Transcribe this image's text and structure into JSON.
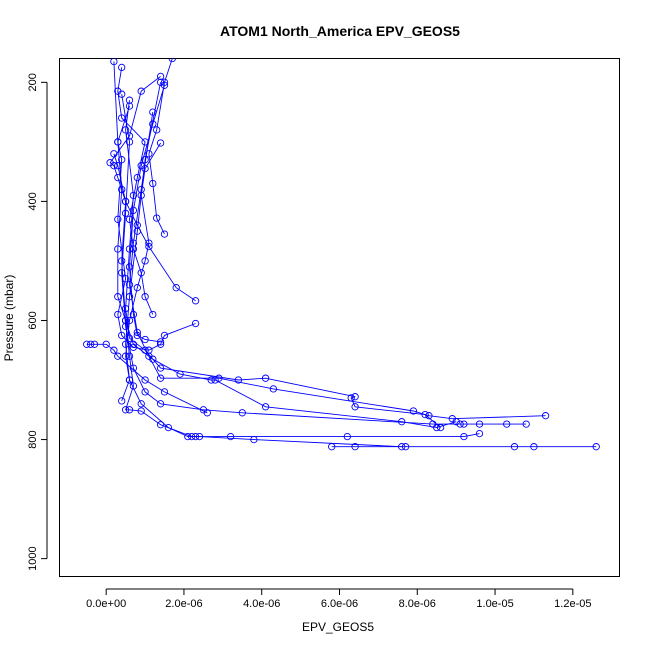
{
  "chart_data": {
    "type": "line",
    "title": "ATOM1 North_America EPV_GEOS5",
    "xlabel": "EPV_GEOS5",
    "ylabel": "Pressure (mbar)",
    "xlim": [
      -1.2e-06,
      1.32e-05
    ],
    "ylim": [
      1030,
      160
    ],
    "y_inverted": true,
    "x_ticks": [
      0,
      2e-06,
      4e-06,
      6e-06,
      8e-06,
      1e-05,
      1.2e-05
    ],
    "x_tick_labels": [
      "0.0e+00",
      "2.0e-06",
      "4.0e-06",
      "6.0e-06",
      "8.0e-06",
      "1.0e-05",
      "1.2e-05"
    ],
    "y_ticks": [
      200,
      400,
      600,
      800,
      1000
    ],
    "y_tick_labels": [
      "200",
      "400",
      "600",
      "800",
      "1000"
    ],
    "marker": "open-circle",
    "color": "#0000ff",
    "series": [
      {
        "name": "profile-1",
        "points": [
          [
            1.26e-05,
            812
          ],
          [
            1.1e-05,
            812
          ],
          [
            1.05e-05,
            812
          ],
          [
            7.7e-06,
            812
          ],
          [
            6.4e-06,
            812
          ],
          [
            5.8e-06,
            812
          ]
        ]
      },
      {
        "name": "profile-2",
        "points": [
          [
            7.6e-06,
            812
          ],
          [
            3.8e-06,
            800
          ],
          [
            2.4e-06,
            795
          ],
          [
            2.1e-06,
            795
          ],
          [
            1.6e-06,
            780
          ],
          [
            9e-07,
            740
          ],
          [
            6e-07,
            700
          ],
          [
            5e-07,
            640
          ],
          [
            6e-07,
            560
          ],
          [
            8e-07,
            450
          ],
          [
            1e-06,
            330
          ],
          [
            1.4e-06,
            200
          ]
        ]
      },
      {
        "name": "profile-3",
        "points": [
          [
            1.13e-05,
            760
          ],
          [
            8.9e-06,
            765
          ],
          [
            8.3e-06,
            760
          ],
          [
            7.9e-06,
            752
          ],
          [
            4.3e-06,
            715
          ],
          [
            2.9e-06,
            697
          ],
          [
            1.4e-06,
            697
          ],
          [
            1.1e-06,
            660
          ],
          [
            8e-07,
            620
          ],
          [
            6e-07,
            540
          ],
          [
            7e-07,
            470
          ],
          [
            9e-07,
            380
          ],
          [
            1.2e-06,
            250
          ]
        ]
      },
      {
        "name": "profile-4",
        "points": [
          [
            1.08e-05,
            774
          ],
          [
            1.03e-05,
            774
          ],
          [
            9.6e-06,
            774
          ],
          [
            9.2e-06,
            774
          ],
          [
            9.1e-06,
            774
          ],
          [
            8.4e-06,
            774
          ],
          [
            3.5e-06,
            755
          ],
          [
            2.5e-06,
            750
          ],
          [
            1.4e-06,
            740
          ],
          [
            1e-06,
            720
          ],
          [
            7e-07,
            680
          ],
          [
            5e-07,
            610
          ],
          [
            4e-07,
            520
          ],
          [
            5e-07,
            420
          ],
          [
            6e-07,
            300
          ],
          [
            4e-07,
            220
          ]
        ]
      },
      {
        "name": "profile-5",
        "points": [
          [
            9.6e-06,
            790
          ],
          [
            9.2e-06,
            795
          ],
          [
            6.2e-06,
            795
          ],
          [
            3.2e-06,
            795
          ],
          [
            2.3e-06,
            795
          ],
          [
            2.2e-06,
            795
          ],
          [
            1.4e-06,
            775
          ],
          [
            9e-07,
            752
          ],
          [
            6e-07,
            750
          ],
          [
            5e-07,
            750
          ],
          [
            7e-07,
            710
          ],
          [
            6e-07,
            660
          ],
          [
            5e-07,
            600
          ],
          [
            4e-07,
            500
          ],
          [
            5e-07,
            400
          ],
          [
            3e-07,
            340
          ],
          [
            2e-07,
            320
          ]
        ]
      },
      {
        "name": "profile-6",
        "points": [
          [
            8.6e-06,
            780
          ],
          [
            8.2e-06,
            758
          ],
          [
            6.4e-06,
            745
          ],
          [
            6.3e-06,
            730
          ],
          [
            6.4e-06,
            728
          ],
          [
            4.1e-06,
            697
          ],
          [
            3.4e-06,
            700
          ],
          [
            1.4e-06,
            680
          ],
          [
            1e-06,
            650
          ],
          [
            6e-07,
            630
          ],
          [
            5e-07,
            580
          ],
          [
            6e-07,
            480
          ],
          [
            7e-07,
            390
          ],
          [
            5e-07,
            280
          ],
          [
            6e-07,
            230
          ]
        ]
      },
      {
        "name": "profile-7",
        "points": [
          [
            9e-06,
            770
          ],
          [
            8.5e-06,
            780
          ],
          [
            7.6e-06,
            770
          ],
          [
            4.1e-06,
            745
          ],
          [
            2.8e-06,
            700
          ],
          [
            2.7e-06,
            700
          ],
          [
            1.9e-06,
            690
          ],
          [
            1.2e-06,
            665
          ],
          [
            7e-07,
            640
          ],
          [
            5e-07,
            600
          ],
          [
            3e-07,
            560
          ],
          [
            3e-07,
            480
          ],
          [
            4e-07,
            380
          ],
          [
            3e-07,
            300
          ],
          [
            6e-07,
            240
          ]
        ]
      },
      {
        "name": "profile-8",
        "points": [
          [
            2.6e-06,
            755
          ],
          [
            1.5e-06,
            720
          ],
          [
            1e-06,
            700
          ],
          [
            3e-07,
            660
          ],
          [
            2e-07,
            650
          ],
          [
            0,
            640
          ],
          [
            -3e-07,
            640
          ],
          [
            -4e-07,
            640
          ],
          [
            -5e-07,
            640
          ]
        ]
      },
      {
        "name": "profile-9",
        "points": [
          [
            2.3e-06,
            567
          ],
          [
            1.8e-06,
            545
          ],
          [
            1.1e-06,
            476
          ],
          [
            8e-07,
            440
          ],
          [
            5e-07,
            400
          ],
          [
            3e-07,
            360
          ],
          [
            2e-07,
            340
          ],
          [
            1e-07,
            335
          ],
          [
            6e-07,
            290
          ],
          [
            9e-07,
            215
          ],
          [
            1.4e-06,
            190
          ]
        ]
      },
      {
        "name": "profile-10",
        "points": [
          [
            2.3e-06,
            605
          ],
          [
            1.5e-06,
            625
          ],
          [
            1.4e-06,
            640
          ],
          [
            1.1e-06,
            650
          ],
          [
            7e-07,
            645
          ],
          [
            4e-07,
            625
          ],
          [
            3e-07,
            590
          ],
          [
            5e-07,
            530
          ],
          [
            3e-07,
            430
          ],
          [
            4e-07,
            330
          ],
          [
            3e-07,
            300
          ],
          [
            2e-07,
            165
          ]
        ]
      },
      {
        "name": "profile-11",
        "points": [
          [
            1.5e-06,
            455
          ],
          [
            1.3e-06,
            428
          ],
          [
            1.2e-06,
            370
          ],
          [
            1.1e-06,
            320
          ],
          [
            1.3e-06,
            280
          ],
          [
            1.5e-06,
            200
          ],
          [
            1.7e-06,
            160
          ]
        ]
      },
      {
        "name": "profile-12",
        "points": [
          [
            1.2e-06,
            590
          ],
          [
            1e-06,
            560
          ],
          [
            9e-07,
            520
          ],
          [
            7e-07,
            480
          ],
          [
            6e-07,
            430
          ],
          [
            8e-07,
            360
          ],
          [
            1e-06,
            300
          ],
          [
            4e-07,
            260
          ],
          [
            3e-07,
            215
          ],
          [
            4e-07,
            175
          ]
        ]
      },
      {
        "name": "profile-13",
        "points": [
          [
            1.4e-06,
            302
          ],
          [
            1e-06,
            345
          ],
          [
            9e-07,
            390
          ],
          [
            1.1e-06,
            470
          ],
          [
            1e-06,
            500
          ],
          [
            8e-07,
            545
          ],
          [
            6e-07,
            600
          ],
          [
            5e-07,
            660
          ],
          [
            6e-07,
            700
          ],
          [
            4e-07,
            735
          ]
        ]
      },
      {
        "name": "profile-14",
        "points": [
          [
            1.4e-06,
            636
          ],
          [
            1e-06,
            632
          ],
          [
            8e-07,
            625
          ],
          [
            7e-07,
            590
          ],
          [
            6e-07,
            510
          ],
          [
            7e-07,
            415
          ],
          [
            9e-07,
            340
          ],
          [
            1.2e-06,
            270
          ],
          [
            1.5e-06,
            205
          ]
        ]
      }
    ]
  }
}
